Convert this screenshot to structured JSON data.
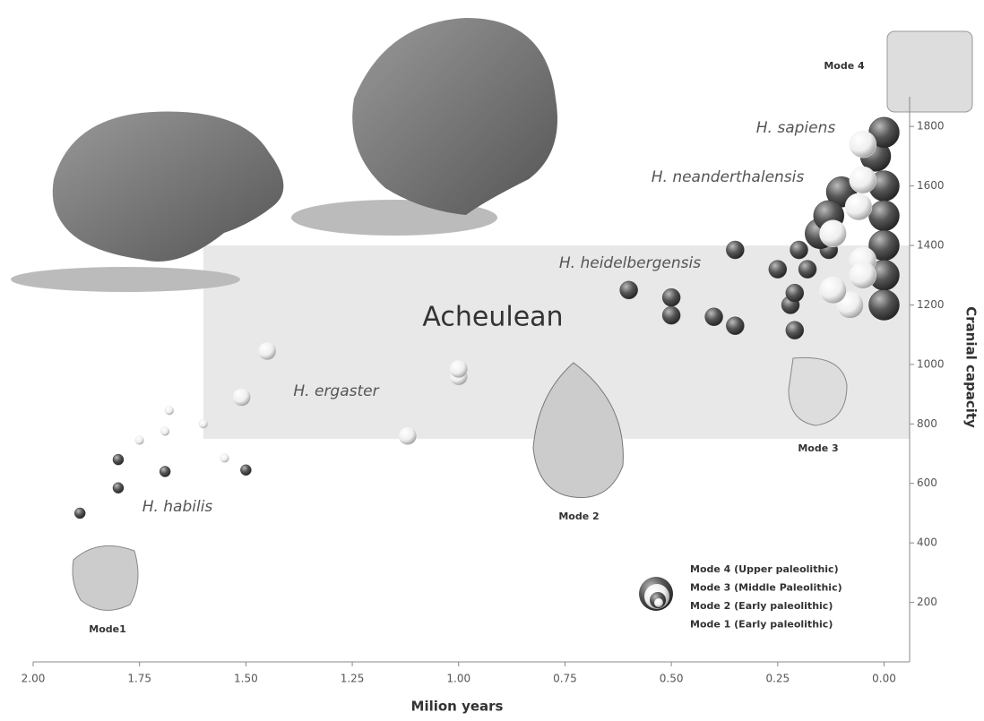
{
  "chart_data": {
    "type": "scatter",
    "xlabel": "Milion years",
    "ylabel": "Cranial capacity",
    "xlim": [
      2,
      -0.06
    ],
    "ylim": [
      0,
      1900
    ],
    "xticks": [
      {
        "value": 2,
        "label": "2.00"
      },
      {
        "value": 1.75,
        "label": "1.75"
      },
      {
        "value": 1.5,
        "label": "1.50"
      },
      {
        "value": 1.25,
        "label": "1.25"
      },
      {
        "value": 1,
        "label": "1.00"
      },
      {
        "value": 0.75,
        "label": "0.75"
      },
      {
        "value": 0.5,
        "label": "0.50"
      },
      {
        "value": 0.25,
        "label": "0.25"
      },
      {
        "value": 0,
        "label": "0.00"
      }
    ],
    "yticks": [
      200,
      400,
      600,
      800,
      1000,
      1200,
      1400,
      1600,
      1800
    ],
    "band": {
      "label": "Acheulean",
      "x": [
        1.6,
        -0.06
      ],
      "y": [
        750,
        1400
      ]
    },
    "tool_labels": [
      "Mode1",
      "Mode 2",
      "Mode 3",
      "Mode 4"
    ],
    "legend": [
      "Mode 4 (Upper paleolithic)",
      "Mode 3 (Middle Paleolithic)",
      "Mode 2 (Early paleolithic)",
      "Mode 1 (Early paleolithic)"
    ],
    "series": [
      {
        "name": "H. habilis",
        "color": "#3a3a3a",
        "x": [
          1.89,
          1.8,
          1.8,
          1.69,
          1.5
        ],
        "values": [
          500,
          680,
          585,
          640,
          645
        ]
      },
      {
        "name": "H. ergaster",
        "color": "#e6e6e6",
        "x": [
          1.75,
          1.69,
          1.68,
          1.6,
          1.55,
          1.51,
          1.45,
          1.12,
          1.0,
          1.0
        ],
        "values": [
          745,
          775,
          845,
          800,
          685,
          890,
          1045,
          760,
          960,
          985
        ]
      },
      {
        "name": "H. heidelbergensis",
        "color": "#4a4a4a",
        "x": [
          0.6,
          0.5,
          0.5,
          0.4,
          0.35,
          0.35,
          0.25,
          0.2,
          0.18,
          0.22,
          0.21,
          0.21,
          0.13
        ],
        "values": [
          1250,
          1225,
          1165,
          1160,
          1130,
          1385,
          1320,
          1385,
          1320,
          1200,
          1240,
          1115,
          1385
        ]
      },
      {
        "name": "H. sapiens",
        "color": "#2e2e2e",
        "x": [
          0.15,
          0.1,
          0.13,
          0.02,
          0.0,
          0.0,
          0.0,
          0.0,
          0.0,
          0.0
        ],
        "values": [
          1440,
          1580,
          1500,
          1700,
          1780,
          1600,
          1500,
          1400,
          1300,
          1200
        ]
      },
      {
        "name": "H. neanderthalensis",
        "color": "#f2f2f2",
        "x": [
          0.05,
          0.05,
          0.06,
          0.12,
          0.05,
          0.05,
          0.08,
          0.12
        ],
        "values": [
          1740,
          1620,
          1530,
          1440,
          1350,
          1300,
          1200,
          1250
        ]
      }
    ]
  }
}
